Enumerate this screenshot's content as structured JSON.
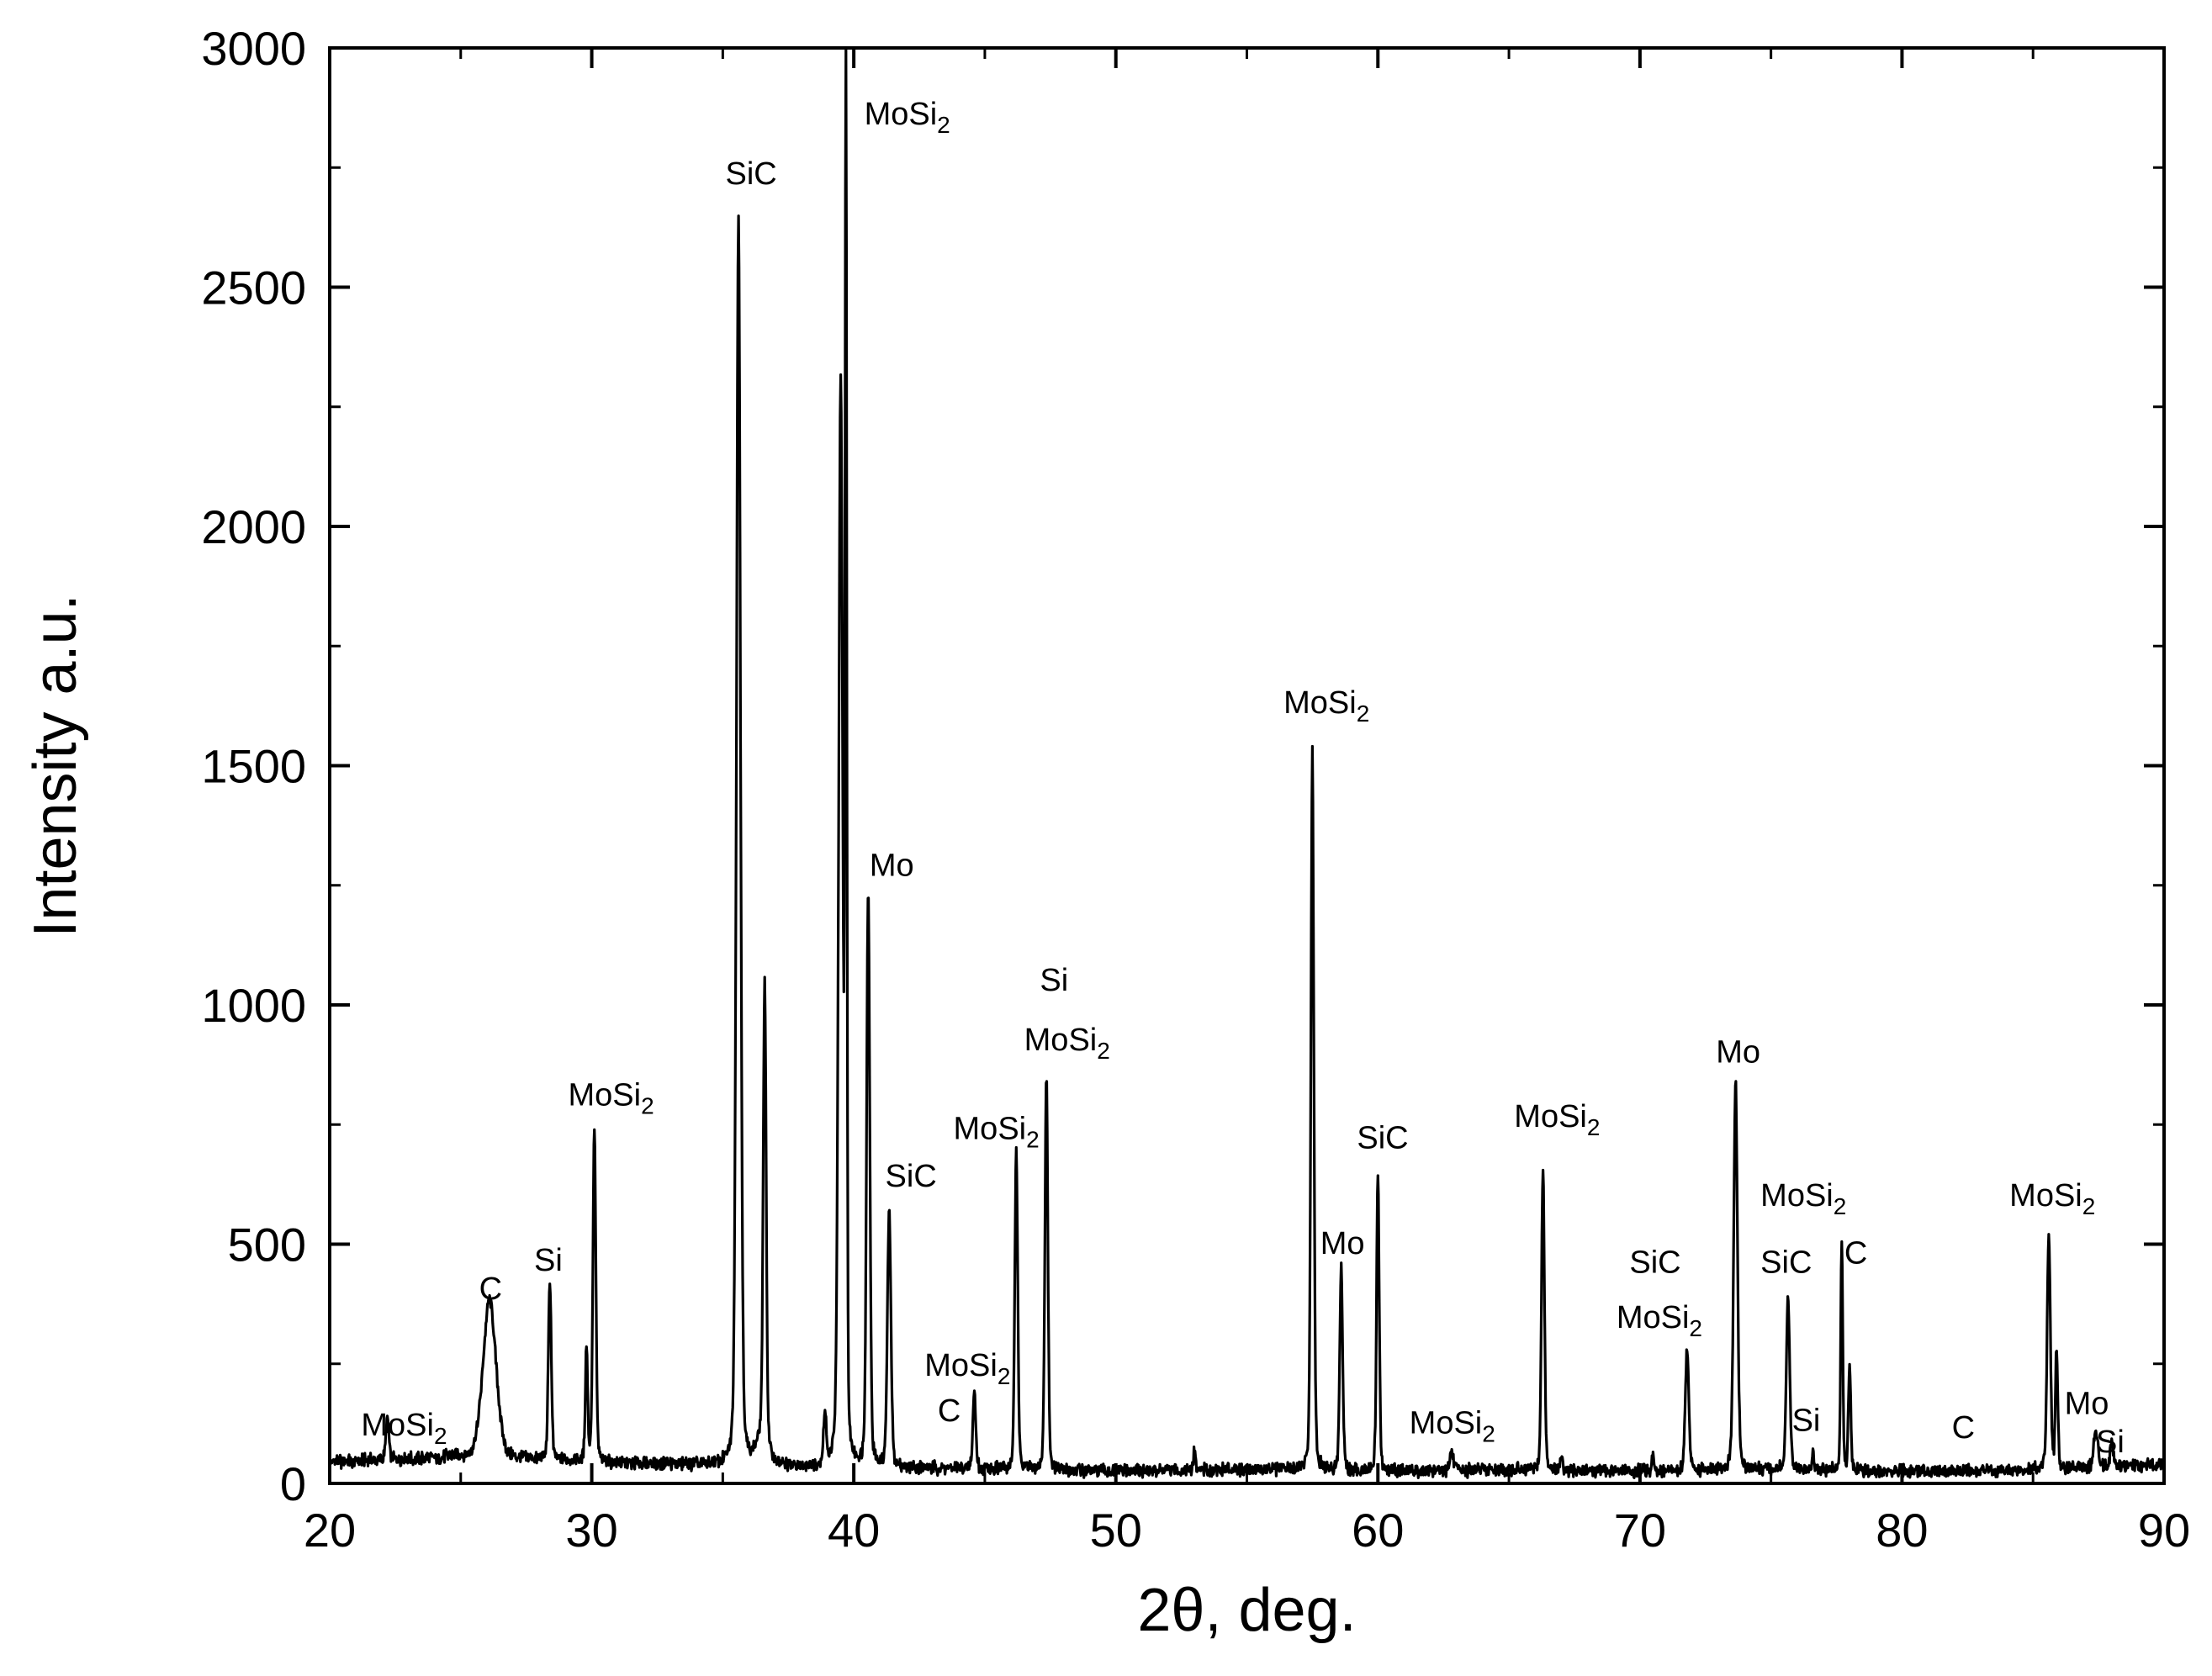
{
  "chart_data": {
    "type": "line",
    "title": "",
    "xlabel": "2θ, deg.",
    "ylabel": "Intensity a.u.",
    "xlim": [
      20,
      90
    ],
    "ylim": [
      0,
      3000
    ],
    "x_ticks": [
      20,
      30,
      40,
      50,
      60,
      70,
      80,
      90
    ],
    "y_ticks": [
      0,
      500,
      1000,
      1500,
      2000,
      2500,
      3000
    ],
    "grid": false,
    "color": "#000000",
    "baseline": [
      [
        20,
        45
      ],
      [
        25,
        55
      ],
      [
        30,
        45
      ],
      [
        34,
        38
      ],
      [
        38,
        35
      ],
      [
        45,
        30
      ],
      [
        50,
        25
      ],
      [
        55,
        30
      ],
      [
        60,
        25
      ],
      [
        65,
        28
      ],
      [
        70,
        25
      ],
      [
        75,
        28
      ],
      [
        80,
        25
      ],
      [
        85,
        28
      ],
      [
        90,
        40
      ]
    ],
    "peaks": [
      {
        "x": 22.2,
        "y": 85,
        "w": 0.1
      },
      {
        "x": 26.1,
        "y": 330,
        "w": 0.45
      },
      {
        "x": 28.4,
        "y": 380,
        "w": 0.1
      },
      {
        "x": 29.8,
        "y": 240,
        "w": 0.08
      },
      {
        "x": 30.1,
        "y": 700,
        "w": 0.1
      },
      {
        "x": 35.6,
        "y": 2610,
        "w": 0.14
      },
      {
        "x": 36.5,
        "y": 50,
        "w": 0.4
      },
      {
        "x": 36.6,
        "y": 970,
        "w": 0.1
      },
      {
        "x": 38.9,
        "y": 100,
        "w": 0.1
      },
      {
        "x": 39.5,
        "y": 2250,
        "w": 0.14
      },
      {
        "x": 39.7,
        "y": 2950,
        "w": 0.06
      },
      {
        "x": 40.55,
        "y": 1210,
        "w": 0.11
      },
      {
        "x": 41.35,
        "y": 535,
        "w": 0.12
      },
      {
        "x": 44.6,
        "y": 160,
        "w": 0.1
      },
      {
        "x": 46.2,
        "y": 670,
        "w": 0.1
      },
      {
        "x": 47.35,
        "y": 830,
        "w": 0.1
      },
      {
        "x": 53.0,
        "y": 45,
        "w": 0.06
      },
      {
        "x": 57.5,
        "y": 1510,
        "w": 0.1
      },
      {
        "x": 58.6,
        "y": 420,
        "w": 0.1
      },
      {
        "x": 60.0,
        "y": 630,
        "w": 0.09
      },
      {
        "x": 62.8,
        "y": 40,
        "w": 0.12
      },
      {
        "x": 66.3,
        "y": 640,
        "w": 0.1
      },
      {
        "x": 67.0,
        "y": 35,
        "w": 0.08
      },
      {
        "x": 70.5,
        "y": 40,
        "w": 0.06
      },
      {
        "x": 71.8,
        "y": 255,
        "w": 0.12
      },
      {
        "x": 73.65,
        "y": 810,
        "w": 0.13
      },
      {
        "x": 75.65,
        "y": 355,
        "w": 0.12
      },
      {
        "x": 76.6,
        "y": 40,
        "w": 0.06
      },
      {
        "x": 77.7,
        "y": 480,
        "w": 0.07
      },
      {
        "x": 78.0,
        "y": 230,
        "w": 0.08
      },
      {
        "x": 85.6,
        "y": 495,
        "w": 0.11
      },
      {
        "x": 85.9,
        "y": 250,
        "w": 0.08
      },
      {
        "x": 87.4,
        "y": 75,
        "w": 0.15
      },
      {
        "x": 88.0,
        "y": 50,
        "w": 0.1
      }
    ],
    "annotations": [
      {
        "text": "MoSi",
        "sub": "2",
        "x": 21.2,
        "y": 100
      },
      {
        "text": "C",
        "x": 25.7,
        "y": 385
      },
      {
        "text": "Si",
        "x": 27.8,
        "y": 445
      },
      {
        "text": "MoSi",
        "sub": "2",
        "x": 29.1,
        "y": 790
      },
      {
        "text": "SiC",
        "x": 35.1,
        "y": 2715
      },
      {
        "text": "MoSi",
        "sub": "2",
        "x": 40.4,
        "y": 2840
      },
      {
        "text": "Mo",
        "x": 40.6,
        "y": 1270
      },
      {
        "text": "SiC",
        "x": 41.2,
        "y": 620
      },
      {
        "text": "MoSi",
        "sub": "2",
        "x": 42.7,
        "y": 225
      },
      {
        "text": "C",
        "x": 43.2,
        "y": 130
      },
      {
        "text": "MoSi",
        "sub": "2",
        "x": 43.8,
        "y": 720
      },
      {
        "text": "Si",
        "x": 47.1,
        "y": 1030
      },
      {
        "text": "MoSi",
        "sub": "2",
        "x": 46.5,
        "y": 905
      },
      {
        "text": "MoSi",
        "sub": "2",
        "x": 56.4,
        "y": 1610
      },
      {
        "text": "Mo",
        "x": 57.8,
        "y": 480
      },
      {
        "text": "SiC",
        "x": 59.2,
        "y": 700
      },
      {
        "text": "MoSi",
        "sub": "2",
        "x": 61.2,
        "y": 105
      },
      {
        "text": "MoSi",
        "sub": "2",
        "x": 65.2,
        "y": 745
      },
      {
        "text": "SiC",
        "x": 69.6,
        "y": 440
      },
      {
        "text": "MoSi",
        "sub": "2",
        "x": 69.1,
        "y": 325
      },
      {
        "text": "Mo",
        "x": 72.9,
        "y": 880
      },
      {
        "text": "MoSi",
        "sub": "2",
        "x": 74.6,
        "y": 580
      },
      {
        "text": "SiC",
        "x": 74.6,
        "y": 440
      },
      {
        "text": "C",
        "x": 77.8,
        "y": 460
      },
      {
        "text": "Si",
        "x": 75.8,
        "y": 110
      },
      {
        "text": "C",
        "x": 81.9,
        "y": 95
      },
      {
        "text": "MoSi",
        "sub": "2",
        "x": 84.1,
        "y": 580
      },
      {
        "text": "Mo",
        "x": 86.2,
        "y": 145
      },
      {
        "text": "Si",
        "x": 87.4,
        "y": 65
      }
    ]
  }
}
